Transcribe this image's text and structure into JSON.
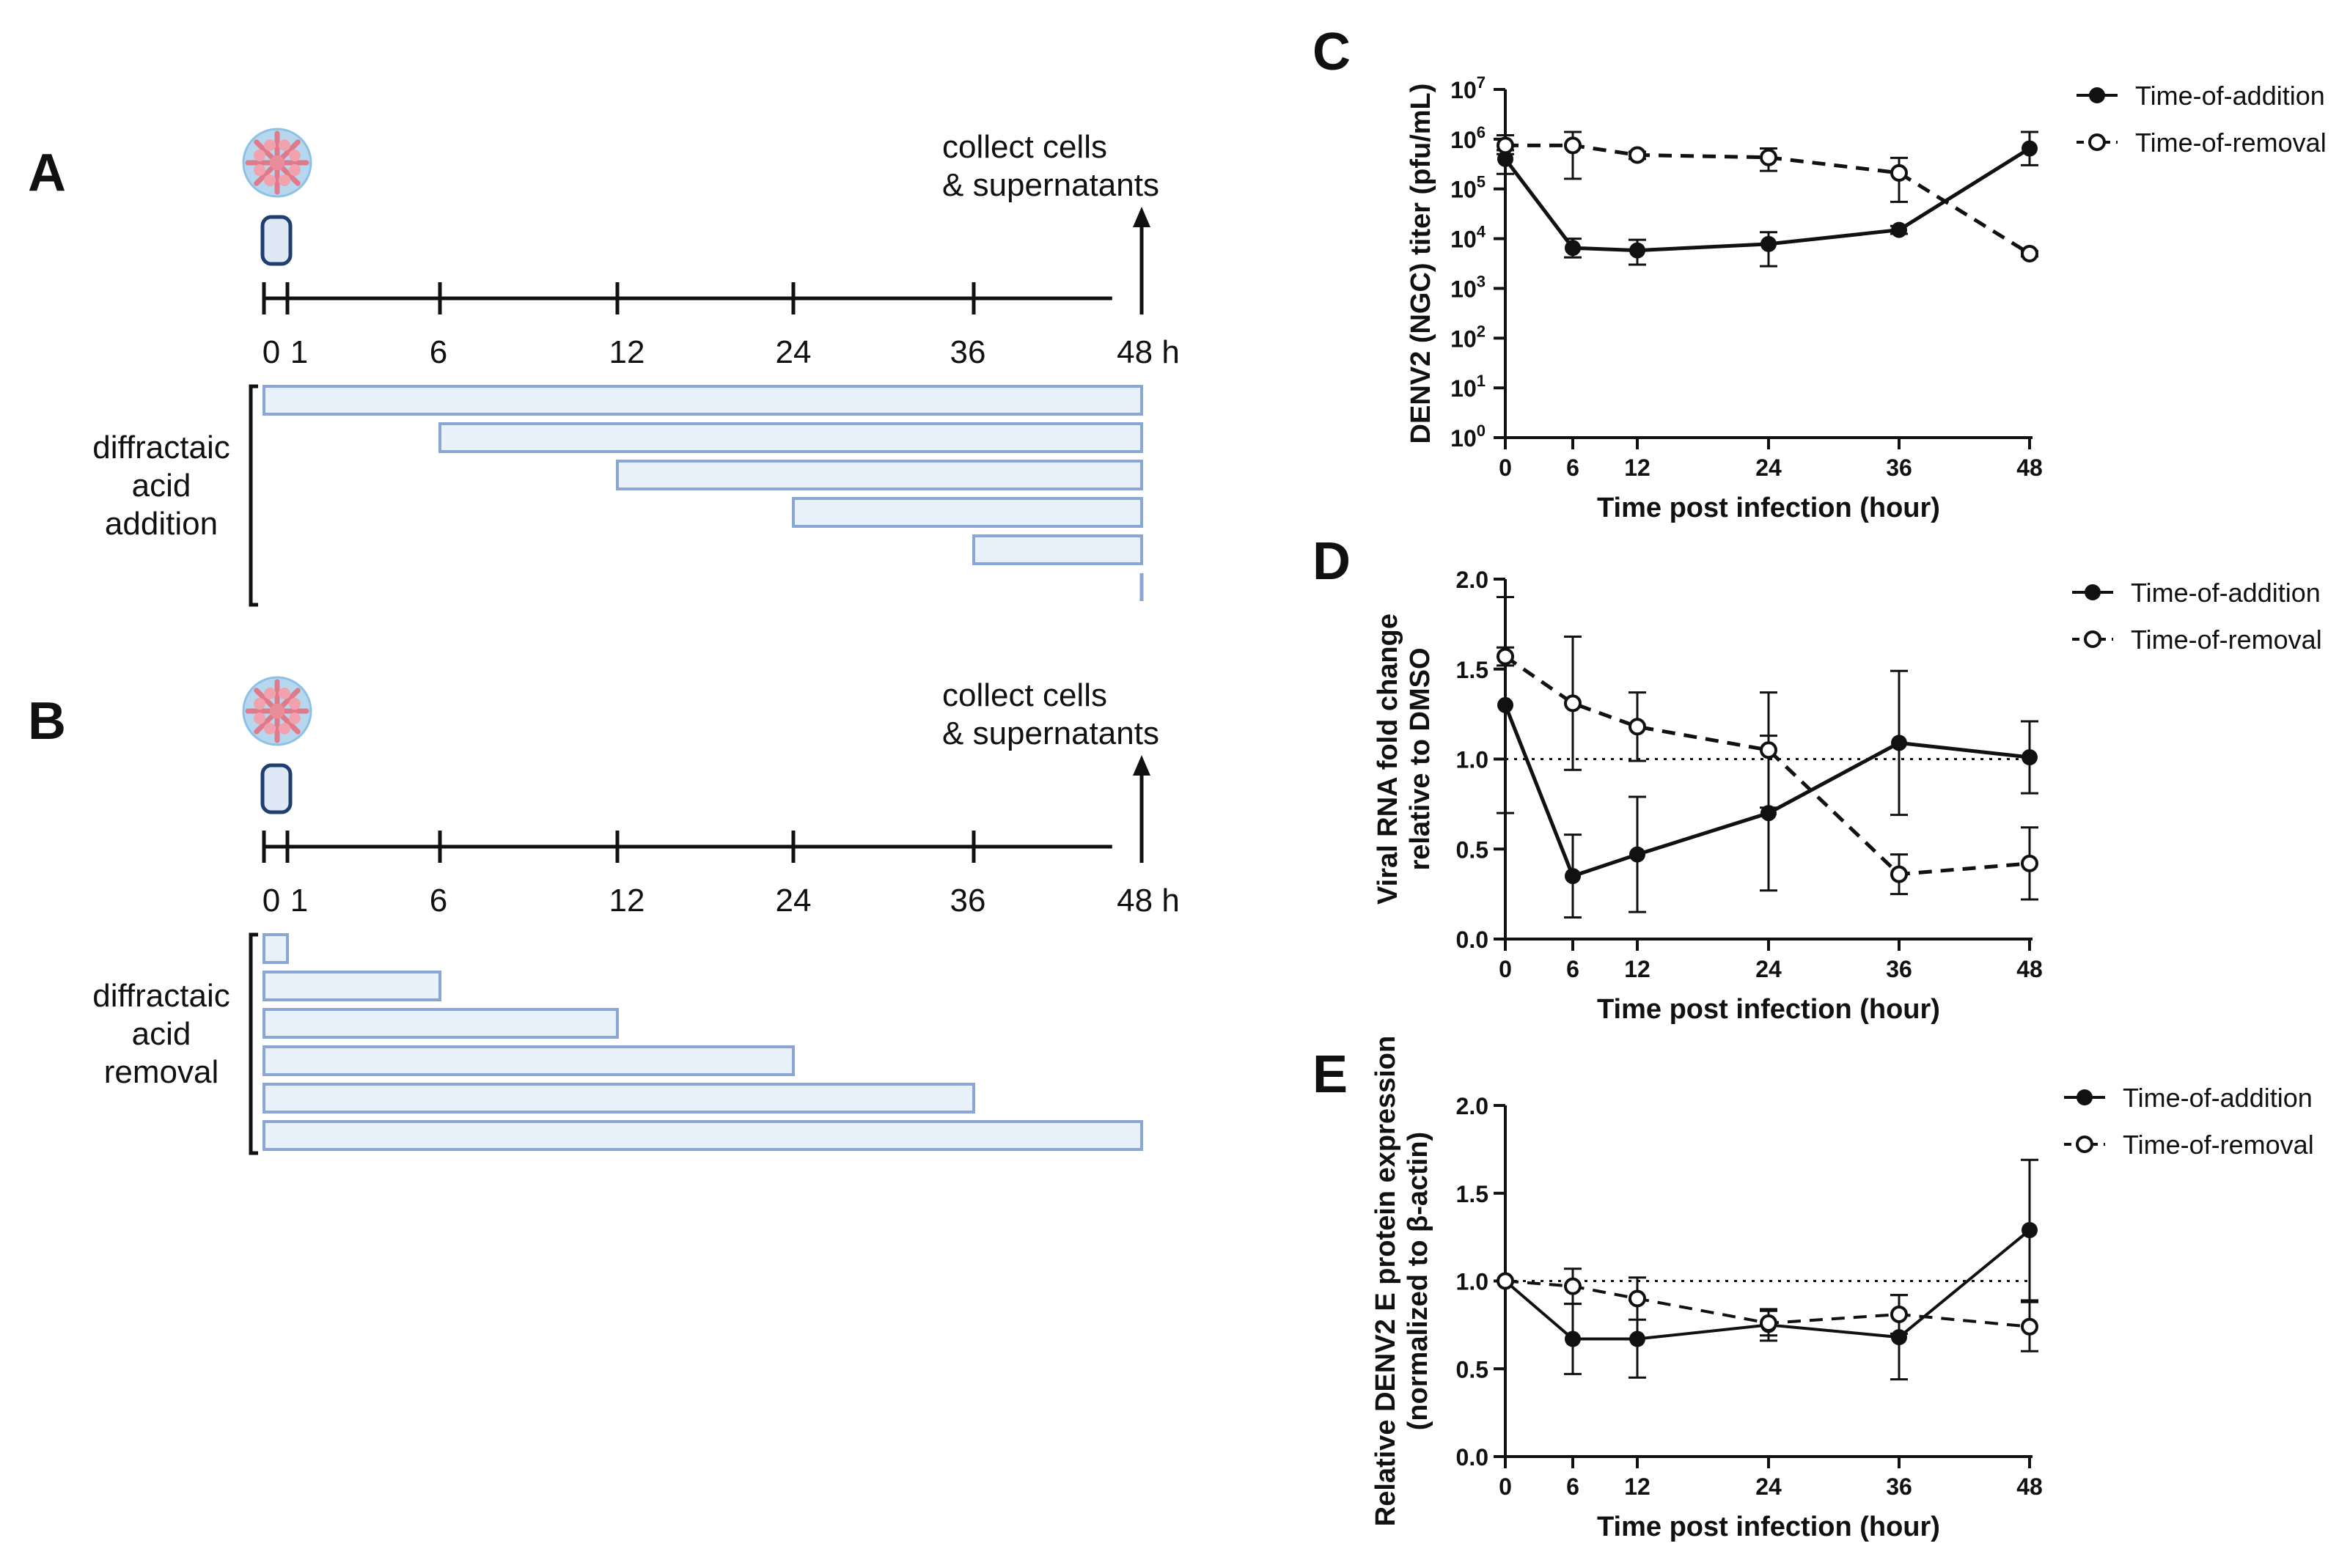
{
  "panels": {
    "A": {
      "letter": "A",
      "collect_line1": "collect cells",
      "collect_line2": "& supernatants",
      "hour_unit": "h",
      "timeline_ticks": [
        "0",
        "1",
        "6",
        "12",
        "24",
        "36",
        "48"
      ],
      "treatment_label": [
        "diffractaic",
        "acid",
        "addition"
      ],
      "bars": [
        {
          "start": "0",
          "end": "48"
        },
        {
          "start": "6",
          "end": "48"
        },
        {
          "start": "12",
          "end": "48"
        },
        {
          "start": "24",
          "end": "48"
        },
        {
          "start": "36",
          "end": "48"
        },
        {
          "start": "48",
          "end": "48"
        }
      ]
    },
    "B": {
      "letter": "B",
      "collect_line1": "collect cells",
      "collect_line2": "& supernatants",
      "hour_unit": "h",
      "timeline_ticks": [
        "0",
        "1",
        "6",
        "12",
        "24",
        "36",
        "48"
      ],
      "treatment_label": [
        "diffractaic",
        "acid",
        "removal"
      ],
      "bars": [
        {
          "start": "0",
          "end": "1"
        },
        {
          "start": "0",
          "end": "6"
        },
        {
          "start": "0",
          "end": "12"
        },
        {
          "start": "0",
          "end": "24"
        },
        {
          "start": "0",
          "end": "36"
        },
        {
          "start": "0",
          "end": "48"
        }
      ]
    }
  },
  "colors": {
    "bar_fill": "#e8f0fa",
    "bar_stroke": "#8aa6d4",
    "capsule_fill": "#dfe9f6",
    "capsule_stroke": "#1f3f73",
    "ink": "#111111"
  },
  "chart_data": [
    {
      "panel": "C",
      "type": "line",
      "yscale": "log",
      "xlabel": "Time post infection (hour)",
      "ylabel": "DENV2 (NGC) titer (pfu/mL)",
      "x": [
        0,
        6,
        12,
        24,
        36,
        48
      ],
      "xticks": [
        "0",
        "6",
        "12",
        "24",
        "36",
        "48"
      ],
      "ylim": [
        1,
        10000000
      ],
      "yticks": [
        "10^0",
        "10^1",
        "10^2",
        "10^3",
        "10^4",
        "10^5",
        "10^6",
        "10^7"
      ],
      "series": [
        {
          "name": "Time-of-addition",
          "style": "solid-filled",
          "values": [
            400000,
            6500,
            5800,
            7800,
            15000,
            650000
          ],
          "err_hi": [
            600000,
            10000,
            9500,
            13500,
            18000,
            1400000
          ],
          "err_lo": [
            200000,
            4200,
            3000,
            2800,
            12500,
            300000
          ]
        },
        {
          "name": "Time-of-removal",
          "style": "dashed-open",
          "values": [
            750000,
            750000,
            480000,
            430000,
            210000,
            5000
          ],
          "err_hi": [
            1200000,
            1400000,
            560000,
            650000,
            420000,
            5600
          ],
          "err_lo": [
            500000,
            160000,
            400000,
            230000,
            55000,
            4400
          ]
        }
      ]
    },
    {
      "panel": "D",
      "type": "line",
      "xlabel": "Time post infection (hour)",
      "ylabel": "Viral RNA fold change relative to DMSO",
      "ylabel_lines": [
        "Viral RNA fold change",
        "relative to DMSO"
      ],
      "x": [
        0,
        6,
        12,
        24,
        36,
        48
      ],
      "xticks": [
        "0",
        "6",
        "12",
        "24",
        "36",
        "48"
      ],
      "ylim": [
        0.0,
        2.0
      ],
      "yticks": [
        "0.0",
        "0.5",
        "1.0",
        "1.5",
        "2.0"
      ],
      "reference_line": 1.0,
      "series": [
        {
          "name": "Time-of-addition",
          "style": "solid-filled",
          "values": [
            1.3,
            0.35,
            0.47,
            0.7,
            1.09,
            1.01
          ],
          "err": [
            0.6,
            0.23,
            0.32,
            0.43,
            0.4,
            0.2
          ]
        },
        {
          "name": "Time-of-removal",
          "style": "dashed-open",
          "values": [
            1.57,
            1.31,
            1.18,
            1.05,
            0.36,
            0.42
          ],
          "err": [
            0.05,
            0.37,
            0.19,
            0.32,
            0.11,
            0.2
          ]
        }
      ]
    },
    {
      "panel": "E",
      "type": "line",
      "xlabel": "Time post infection (hour)",
      "ylabel": "Relative DENV2 E protein expression (normalized to β-actin)",
      "ylabel_lines": [
        "Relative DENV2 E protein expression",
        "(normalized to β-actin)"
      ],
      "x": [
        0,
        6,
        12,
        24,
        36,
        48
      ],
      "xticks": [
        "0",
        "6",
        "12",
        "24",
        "36",
        "48"
      ],
      "ylim": [
        0.0,
        2.0
      ],
      "yticks": [
        "0.0",
        "0.5",
        "1.0",
        "1.5",
        "2.0"
      ],
      "reference_line": 1.0,
      "series": [
        {
          "name": "Time-of-addition",
          "style": "solid-filled",
          "values": [
            1.0,
            0.67,
            0.67,
            0.75,
            0.68,
            1.29
          ],
          "err": [
            0.0,
            0.2,
            0.22,
            0.09,
            0.24,
            0.4
          ]
        },
        {
          "name": "Time-of-removal",
          "style": "dashed-open",
          "values": [
            1.0,
            0.97,
            0.9,
            0.76,
            0.81,
            0.74
          ],
          "err": [
            0.0,
            0.1,
            0.12,
            0.07,
            0.11,
            0.14
          ]
        }
      ]
    }
  ]
}
